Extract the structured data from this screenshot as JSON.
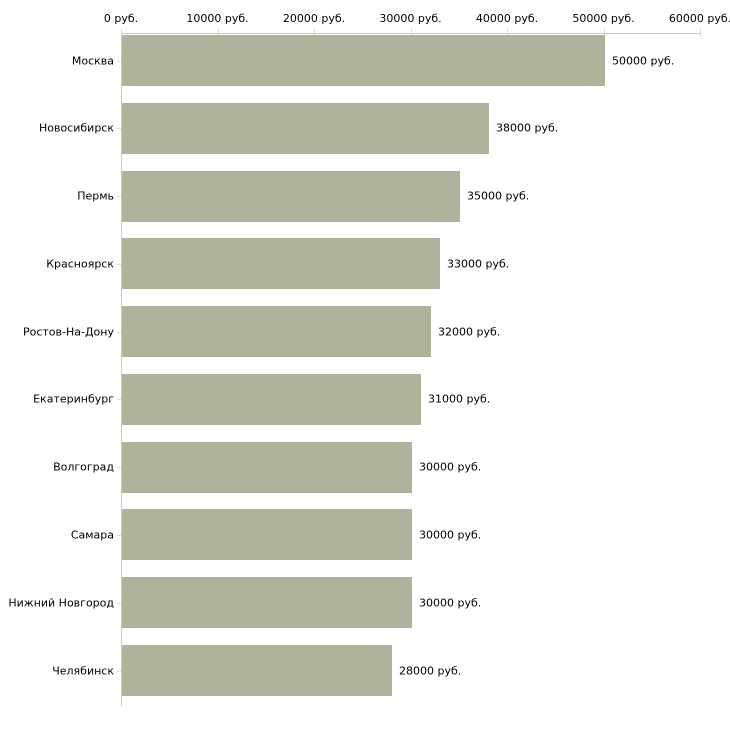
{
  "chart_data": {
    "type": "bar",
    "orientation": "horizontal",
    "title": "",
    "xlabel": "",
    "ylabel": "",
    "xlim": [
      0,
      60000
    ],
    "grid": false,
    "legend": false,
    "categories": [
      "Москва",
      "Новосибирск",
      "Пермь",
      "Красноярск",
      "Ростов-На-Дону",
      "Екатеринбург",
      "Волгоград",
      "Самара",
      "Нижний Новгород",
      "Челябинск"
    ],
    "values": [
      50000,
      38000,
      35000,
      33000,
      32000,
      31000,
      30000,
      30000,
      30000,
      28000
    ],
    "value_labels": [
      "50000 руб.",
      "38000 руб.",
      "35000 руб.",
      "33000 руб.",
      "32000 руб.",
      "31000 руб.",
      "30000 руб.",
      "30000 руб.",
      "30000 руб.",
      "28000 руб."
    ],
    "x_ticks": [
      0,
      10000,
      20000,
      30000,
      40000,
      50000,
      60000
    ],
    "x_tick_labels": [
      "0 руб.",
      "10000 руб.",
      "20000 руб.",
      "30000 руб.",
      "40000 руб.",
      "50000 руб.",
      "60000 руб."
    ],
    "colors": {
      "bar": "#aeb49c",
      "axis": "#c9c9c9",
      "tick": "#ddd9c3",
      "text": "#000000",
      "background": "#ffffff"
    }
  }
}
